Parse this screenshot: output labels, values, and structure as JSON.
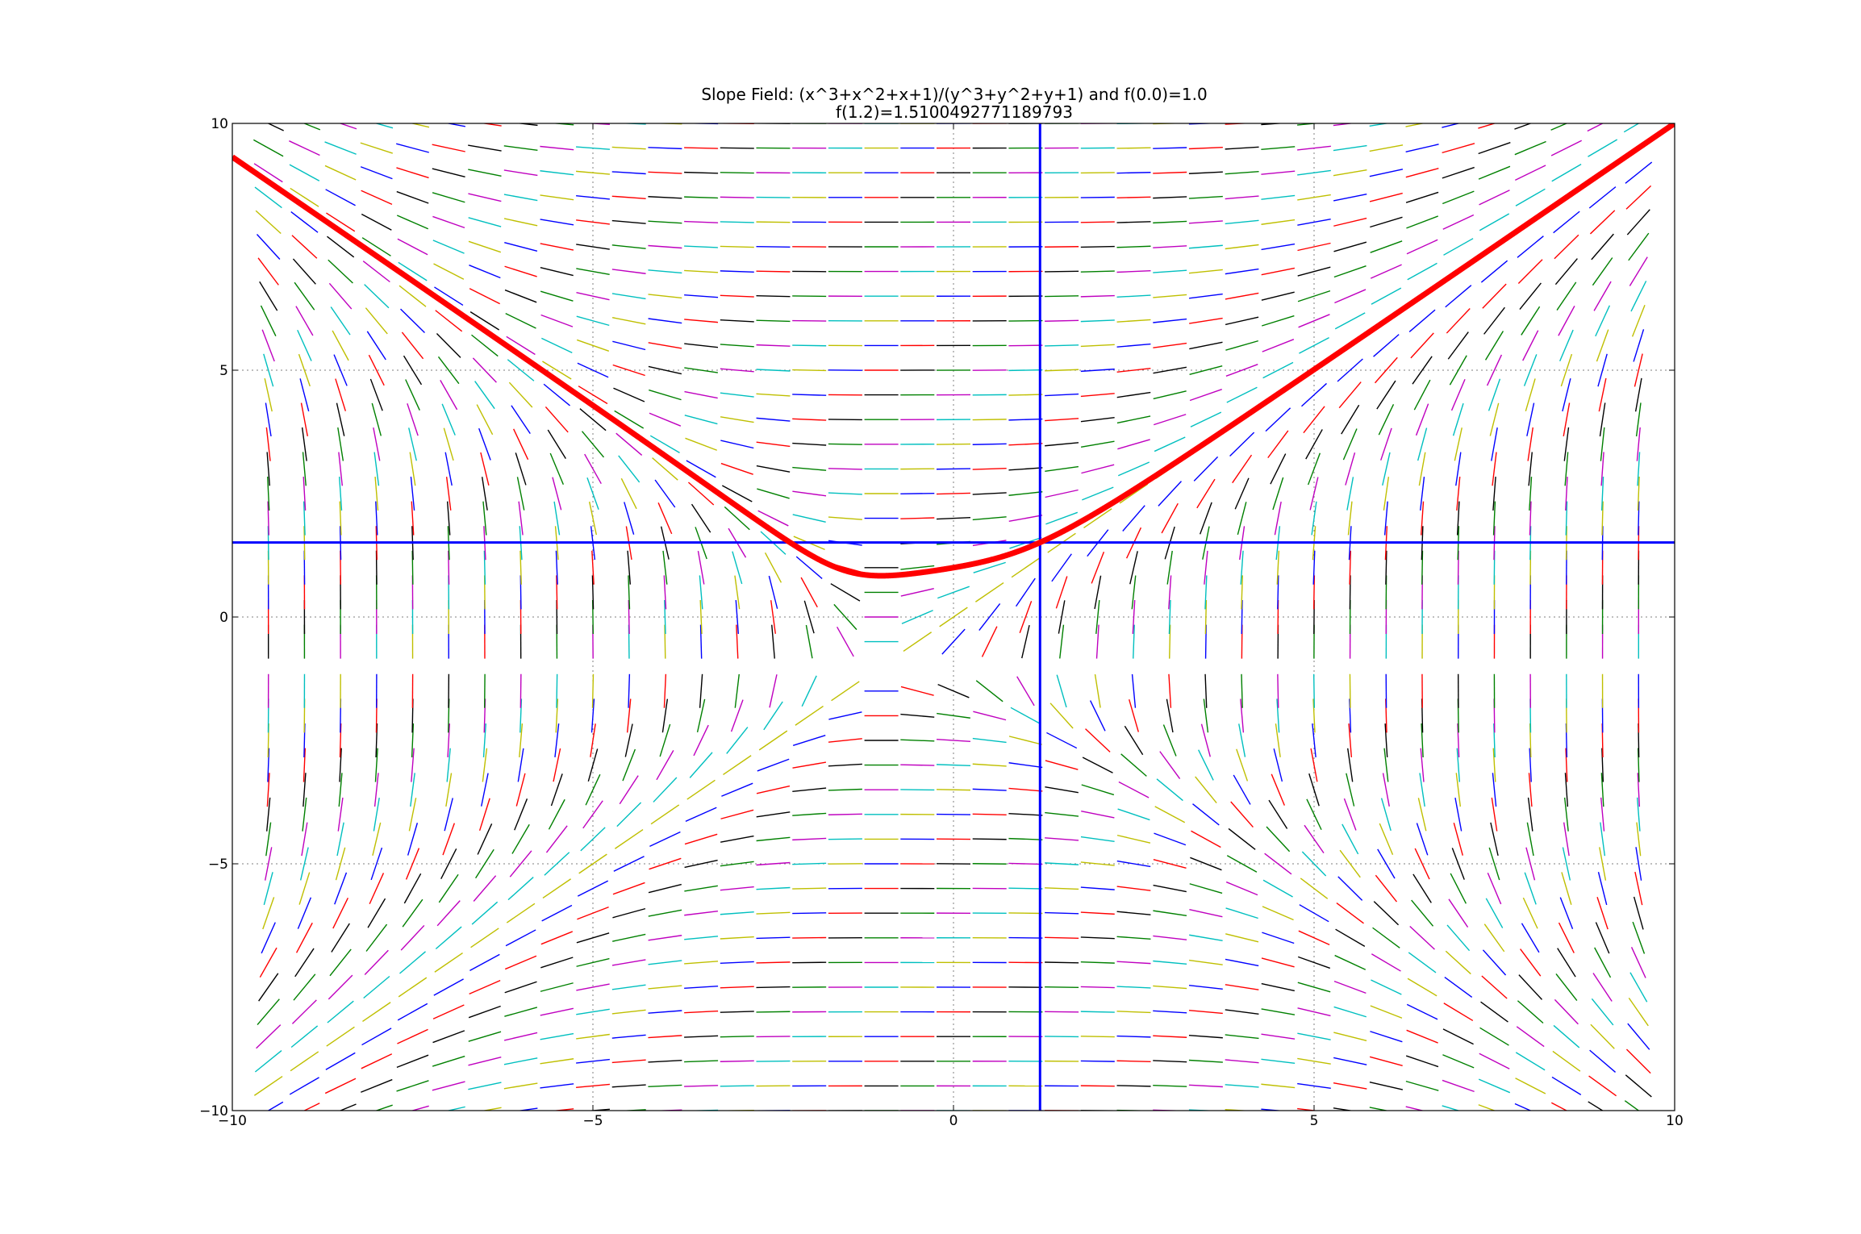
{
  "chart_data": {
    "type": "line",
    "kind": "slope-field",
    "title": "Slope Field: (x^3+x^2+x+1)/(y^3+y^2+y+1) and f(0.0)=1.0",
    "subtitle": "f(1.2)=1.5100492771189793",
    "differential_equation": "(x^3+x^2+x+1)/(y^3+y^2+y+1)",
    "initial_condition": {
      "x0": 0.0,
      "y0": 1.0
    },
    "evaluation": {
      "x": 1.2,
      "y": 1.5100492771189793
    },
    "xlim": [
      -10,
      10
    ],
    "ylim": [
      -10,
      10
    ],
    "x_ticks": [
      -10,
      -5,
      0,
      5,
      10
    ],
    "y_ticks": [
      -10,
      -5,
      0,
      5,
      10
    ],
    "x_tick_labels": [
      "−10",
      "−5",
      "0",
      "5",
      "10"
    ],
    "y_tick_labels": [
      "−10",
      "−5",
      "0",
      "5",
      "10"
    ],
    "grid": true,
    "field_grid": {
      "x_start": -9.5,
      "x_end": 9.5,
      "x_step": 0.5,
      "y_start": -10,
      "y_end": 10,
      "y_step": 0.5
    },
    "segment_colors": [
      "#ff0000",
      "#0000ff",
      "#bfbf00",
      "#00bfbf",
      "#bf00bf",
      "#008000",
      "#000000"
    ],
    "solution_color": "#ff0000",
    "crosshair_color": "#0000ff"
  }
}
